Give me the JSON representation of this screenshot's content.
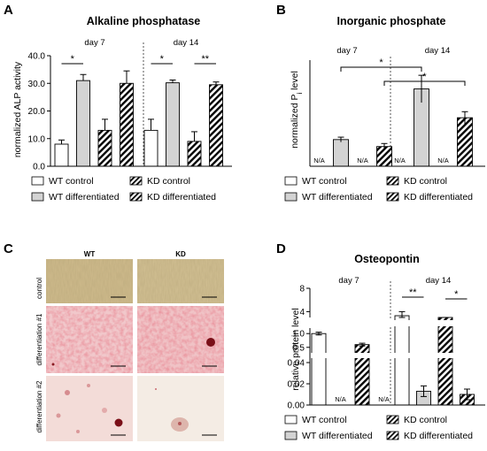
{
  "panels": {
    "A": {
      "label": "A",
      "title": "Alkaline phosphatase",
      "ylabel": "normalized ALP activity",
      "groups": [
        "day 7",
        "day 14"
      ]
    },
    "B": {
      "label": "B",
      "title": "Inorganic phosphate",
      "ylabel_main": "normalized P",
      "ylabel_sub": "i",
      "ylabel_tail": " level",
      "groups": [
        "day 7",
        "day 14"
      ]
    },
    "C": {
      "label": "C",
      "columns": [
        "WT",
        "KD"
      ],
      "rows": [
        "control",
        "differentiation #1",
        "differentiation #2"
      ]
    },
    "D": {
      "label": "D",
      "title": "Osteopontin",
      "ylabel": "relative protein level",
      "groups": [
        "day 7",
        "day 14"
      ]
    }
  },
  "legend": {
    "wt_control": "WT control",
    "kd_control": "KD control",
    "wt_diff": "WT differentiated",
    "kd_diff": "KD differentiated"
  },
  "na_text": "N/A",
  "colors": {
    "wt_control": "#ffffff",
    "wt_diff": "#d3d3d3",
    "kd": "hatched-black",
    "stain_control": "#cdb88a",
    "stain_diff": "#e3a0a6"
  },
  "chart_data": [
    {
      "panel": "A",
      "type": "bar",
      "categories": [
        "day 7",
        "day 14"
      ],
      "ylim": [
        0,
        40
      ],
      "yticks": [
        "0.0",
        "10.0",
        "20.0",
        "30.0",
        "40.0"
      ],
      "series": [
        {
          "name": "WT control",
          "values": [
            8.0,
            13.0
          ],
          "errors": [
            1.5,
            4.0
          ]
        },
        {
          "name": "WT differentiated",
          "values": [
            31.0,
            30.2
          ],
          "errors": [
            2.2,
            1.0
          ]
        },
        {
          "name": "KD control",
          "values": [
            13.0,
            9.0
          ],
          "errors": [
            4.0,
            3.5
          ]
        },
        {
          "name": "KD differentiated",
          "values": [
            30.0,
            29.5
          ],
          "errors": [
            4.5,
            1.0
          ]
        }
      ],
      "significance": [
        {
          "group": "day 7",
          "between": [
            "WT control",
            "WT differentiated"
          ],
          "label": "*"
        },
        {
          "group": "day 14",
          "between": [
            "WT control",
            "WT differentiated"
          ],
          "label": "*"
        },
        {
          "group": "day 14",
          "between": [
            "KD control",
            "KD differentiated"
          ],
          "label": "**"
        }
      ]
    },
    {
      "panel": "B",
      "type": "bar",
      "categories": [
        "day 7",
        "day 14"
      ],
      "ylim": [
        0,
        3.5
      ],
      "series": [
        {
          "name": "WT control",
          "values": [
            null,
            null
          ],
          "errors": [
            null,
            null
          ]
        },
        {
          "name": "WT differentiated",
          "values": [
            0.88,
            2.55
          ],
          "errors": [
            0.08,
            0.45
          ]
        },
        {
          "name": "KD control",
          "values": [
            null,
            null
          ],
          "errors": [
            null,
            null
          ]
        },
        {
          "name": "KD differentiated",
          "values": [
            0.65,
            1.6
          ],
          "errors": [
            0.1,
            0.2
          ]
        }
      ],
      "significance": [
        {
          "between": [
            "WT differentiated day 7",
            "WT differentiated day 14"
          ],
          "label": "*"
        },
        {
          "between": [
            "KD differentiated day 7",
            "KD differentiated day 14"
          ],
          "label": "*"
        }
      ]
    },
    {
      "panel": "D",
      "type": "bar",
      "categories": [
        "day 7",
        "day 14"
      ],
      "y_axis_segments": [
        {
          "range": [
            0,
            0.05
          ],
          "ticks": [
            "0.00",
            "0.02",
            "0.04"
          ]
        },
        {
          "range": [
            0.3,
            1.2
          ],
          "ticks": [
            "0.5",
            "1.0"
          ]
        },
        {
          "range": [
            3,
            8
          ],
          "ticks": [
            "4",
            "8"
          ]
        }
      ],
      "series": [
        {
          "name": "WT control",
          "values": [
            1.0,
            3.3
          ],
          "errors": [
            0.05,
            0.7
          ]
        },
        {
          "name": "WT differentiated",
          "values": [
            null,
            0.013
          ],
          "errors": [
            null,
            0.005
          ]
        },
        {
          "name": "KD control",
          "values": [
            0.6,
            2.4
          ],
          "errors": [
            0.05,
            0.4
          ]
        },
        {
          "name": "KD differentiated",
          "values": [
            null,
            0.01
          ],
          "errors": [
            null,
            0.005
          ]
        }
      ],
      "significance": [
        {
          "group": "day 14",
          "between": [
            "WT control",
            "WT differentiated"
          ],
          "label": "**"
        },
        {
          "group": "day 14",
          "between": [
            "KD control",
            "KD differentiated"
          ],
          "label": "*"
        }
      ]
    }
  ]
}
